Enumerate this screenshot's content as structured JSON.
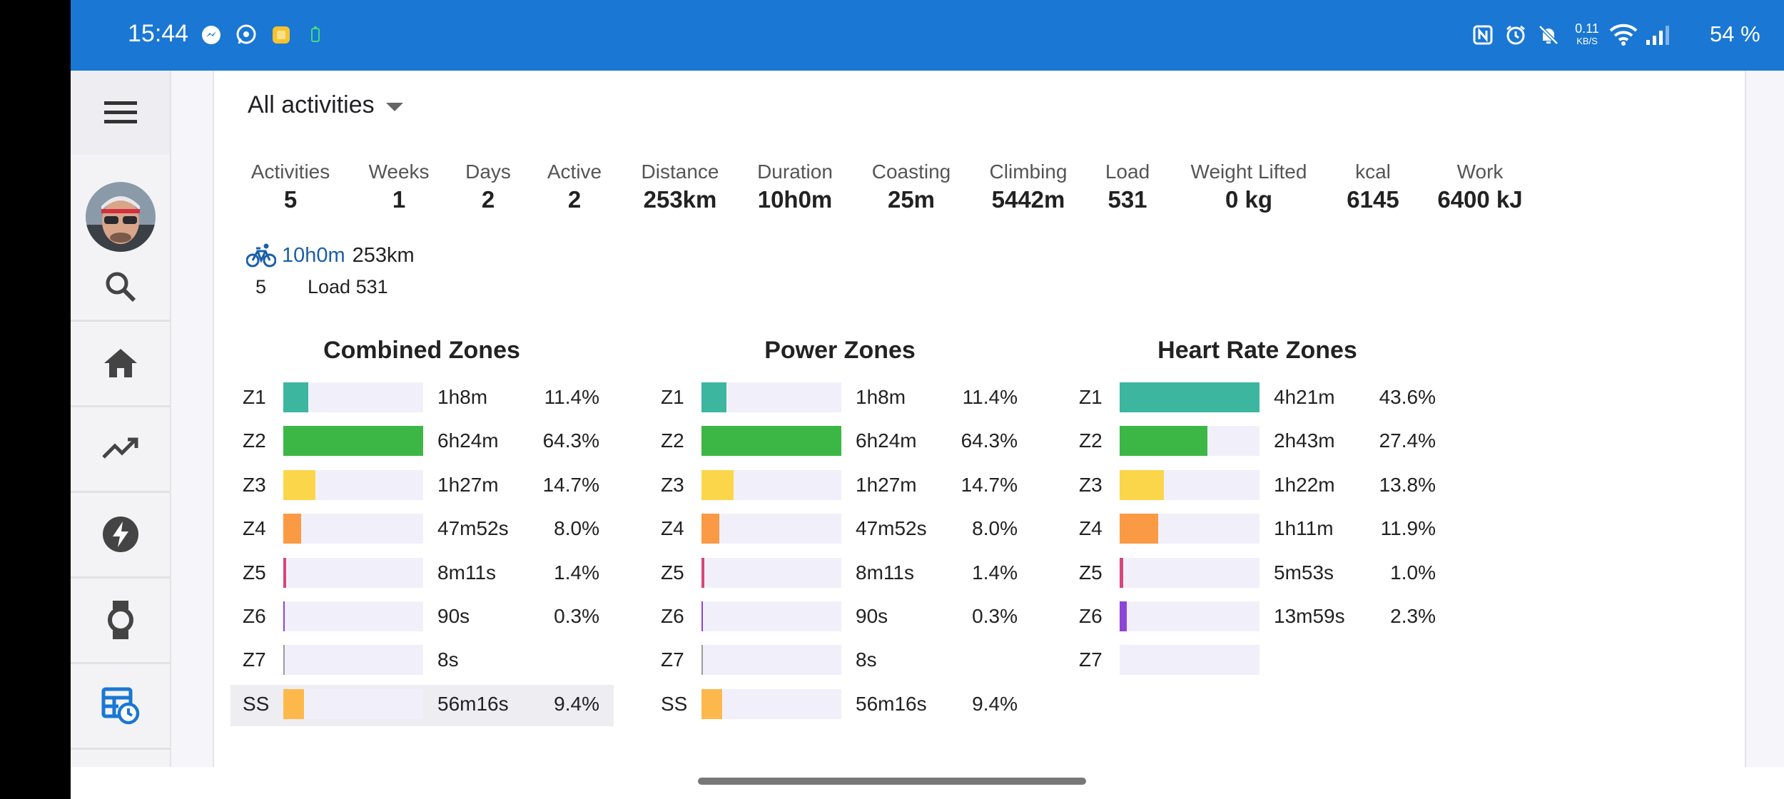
{
  "status_bar": {
    "time": "15:44",
    "net_rate": "0.11",
    "net_unit": "KB/S",
    "battery": "54 %"
  },
  "filter": {
    "label": "All activities"
  },
  "stats": [
    {
      "label": "Activities",
      "value": "5"
    },
    {
      "label": "Weeks",
      "value": "1"
    },
    {
      "label": "Days",
      "value": "2"
    },
    {
      "label": "Active",
      "value": "2"
    },
    {
      "label": "Distance",
      "value": "253km"
    },
    {
      "label": "Duration",
      "value": "10h0m"
    },
    {
      "label": "Coasting",
      "value": "25m"
    },
    {
      "label": "Climbing",
      "value": "5442m"
    },
    {
      "label": "Load",
      "value": "531"
    },
    {
      "label": "Weight Lifted",
      "value": "0 kg"
    },
    {
      "label": "kcal",
      "value": "6145"
    },
    {
      "label": "Work",
      "value": "6400 kJ"
    }
  ],
  "sport_summary": {
    "icon": "bicycle-icon",
    "duration": "10h0m",
    "distance": "253km",
    "count": "5",
    "load": "Load 531"
  },
  "zone_colors": {
    "Z1": "#3db6a0",
    "Z2": "#3cb746",
    "Z3": "#fcd64a",
    "Z4": "#fb9a44",
    "Z5": "#d8457b",
    "Z6": "#8e44d6",
    "Z7": "#9c9c9c",
    "SS": "#fdb84b"
  },
  "panels": [
    {
      "title": "Combined Zones",
      "zones": [
        {
          "zone": "Z1",
          "time": "1h8m",
          "pct": "11.4%",
          "fraction": 0.177
        },
        {
          "zone": "Z2",
          "time": "6h24m",
          "pct": "64.3%",
          "fraction": 1.0
        },
        {
          "zone": "Z3",
          "time": "1h27m",
          "pct": "14.7%",
          "fraction": 0.229
        },
        {
          "zone": "Z4",
          "time": "47m52s",
          "pct": "8.0%",
          "fraction": 0.125
        },
        {
          "zone": "Z5",
          "time": "8m11s",
          "pct": "1.4%",
          "fraction": 0.021
        },
        {
          "zone": "Z6",
          "time": "90s",
          "pct": "0.3%",
          "fraction": 0.004
        },
        {
          "zone": "Z7",
          "time": "8s",
          "pct": "",
          "fraction": 0.002
        },
        {
          "zone": "SS",
          "time": "56m16s",
          "pct": "9.4%",
          "fraction": 0.146
        }
      ]
    },
    {
      "title": "Power Zones",
      "zones": [
        {
          "zone": "Z1",
          "time": "1h8m",
          "pct": "11.4%",
          "fraction": 0.177
        },
        {
          "zone": "Z2",
          "time": "6h24m",
          "pct": "64.3%",
          "fraction": 1.0
        },
        {
          "zone": "Z3",
          "time": "1h27m",
          "pct": "14.7%",
          "fraction": 0.229
        },
        {
          "zone": "Z4",
          "time": "47m52s",
          "pct": "8.0%",
          "fraction": 0.125
        },
        {
          "zone": "Z5",
          "time": "8m11s",
          "pct": "1.4%",
          "fraction": 0.021
        },
        {
          "zone": "Z6",
          "time": "90s",
          "pct": "0.3%",
          "fraction": 0.004
        },
        {
          "zone": "Z7",
          "time": "8s",
          "pct": "",
          "fraction": 0.002
        },
        {
          "zone": "SS",
          "time": "56m16s",
          "pct": "9.4%",
          "fraction": 0.146
        }
      ]
    },
    {
      "title": "Heart Rate Zones",
      "zones": [
        {
          "zone": "Z1",
          "time": "4h21m",
          "pct": "43.6%",
          "fraction": 1.0
        },
        {
          "zone": "Z2",
          "time": "2h43m",
          "pct": "27.4%",
          "fraction": 0.628
        },
        {
          "zone": "Z3",
          "time": "1h22m",
          "pct": "13.8%",
          "fraction": 0.317
        },
        {
          "zone": "Z4",
          "time": "1h11m",
          "pct": "11.9%",
          "fraction": 0.273
        },
        {
          "zone": "Z5",
          "time": "5m53s",
          "pct": "1.0%",
          "fraction": 0.023
        },
        {
          "zone": "Z6",
          "time": "13m59s",
          "pct": "2.3%",
          "fraction": 0.053
        },
        {
          "zone": "Z7",
          "time": "",
          "pct": "",
          "fraction": 0
        }
      ]
    }
  ]
}
